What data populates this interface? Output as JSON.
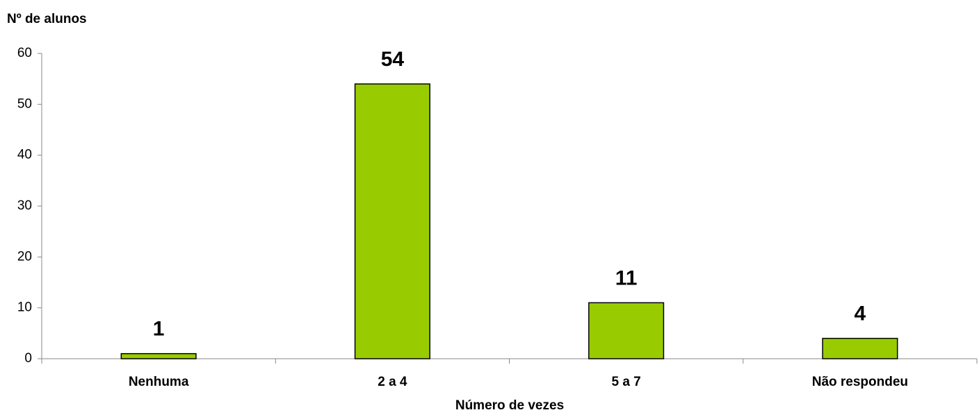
{
  "chart_data": {
    "type": "bar",
    "y_label": "Nº de alunos",
    "x_label": "Número de vezes",
    "categories": [
      "Nenhuma",
      "2 a 4",
      "5 a 7",
      "Não respondeu"
    ],
    "values": [
      1,
      54,
      11,
      4
    ],
    "color": "#99cc00",
    "ylim": [
      0,
      60
    ],
    "yticks": [
      0,
      10,
      20,
      30,
      40,
      50,
      60
    ],
    "grid": false
  }
}
